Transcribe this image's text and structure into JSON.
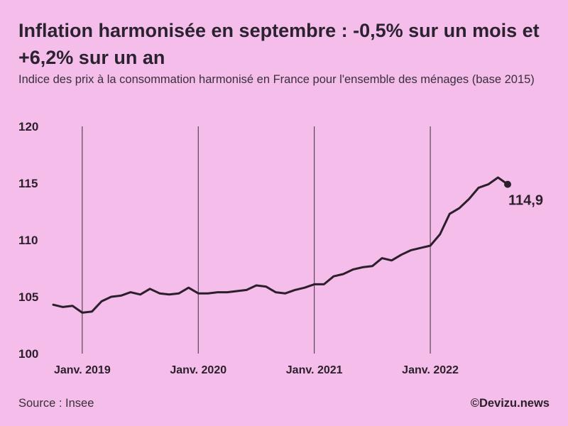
{
  "title": "Inflation harmonisée en septembre : -0,5% sur un mois et +6,2% sur un an",
  "subtitle": "Indice des prix à la consommation harmonisé en France pour l'ensemble des ménages (base 2015)",
  "source": "Source : Insee",
  "credit": "©Devizu.news",
  "chart_data": {
    "type": "line",
    "y_ticks": [
      "100",
      "105",
      "110",
      "115",
      "120"
    ],
    "ylim": [
      100,
      120
    ],
    "x_ticks": [
      {
        "label": "Janv. 2019",
        "x": "2019-01"
      },
      {
        "label": "Janv. 2020",
        "x": "2020-01"
      },
      {
        "label": "Janv. 2021",
        "x": "2021-01"
      },
      {
        "label": "Janv. 2022",
        "x": "2022-01"
      }
    ],
    "xlim": [
      "2018-10",
      "2022-09"
    ],
    "vertical_gridlines": "at each January",
    "last_value_label": "114,9",
    "series": [
      {
        "x": [
          "2018-10",
          "2018-11",
          "2018-12",
          "2019-01",
          "2019-02",
          "2019-03",
          "2019-04",
          "2019-05",
          "2019-06",
          "2019-07",
          "2019-08",
          "2019-09",
          "2019-10",
          "2019-11",
          "2019-12",
          "2020-01",
          "2020-02",
          "2020-03",
          "2020-04",
          "2020-05",
          "2020-06",
          "2020-07",
          "2020-08",
          "2020-09",
          "2020-10",
          "2020-11",
          "2020-12",
          "2021-01",
          "2021-02",
          "2021-03",
          "2021-04",
          "2021-05",
          "2021-06",
          "2021-07",
          "2021-08",
          "2021-09",
          "2021-10",
          "2021-11",
          "2021-12",
          "2022-01",
          "2022-02",
          "2022-03",
          "2022-04",
          "2022-05",
          "2022-06",
          "2022-07",
          "2022-08",
          "2022-09"
        ],
        "values": [
          104.3,
          104.1,
          104.2,
          103.6,
          103.7,
          104.6,
          105.0,
          105.1,
          105.4,
          105.2,
          105.7,
          105.3,
          105.2,
          105.3,
          105.8,
          105.3,
          105.3,
          105.4,
          105.4,
          105.5,
          105.6,
          106.0,
          105.9,
          105.4,
          105.3,
          105.6,
          105.8,
          106.1,
          106.1,
          106.8,
          107.0,
          107.4,
          107.6,
          107.7,
          108.4,
          108.2,
          108.7,
          109.1,
          109.3,
          109.5,
          110.5,
          112.3,
          112.8,
          113.6,
          114.6,
          114.9,
          115.5,
          114.9
        ]
      }
    ]
  }
}
